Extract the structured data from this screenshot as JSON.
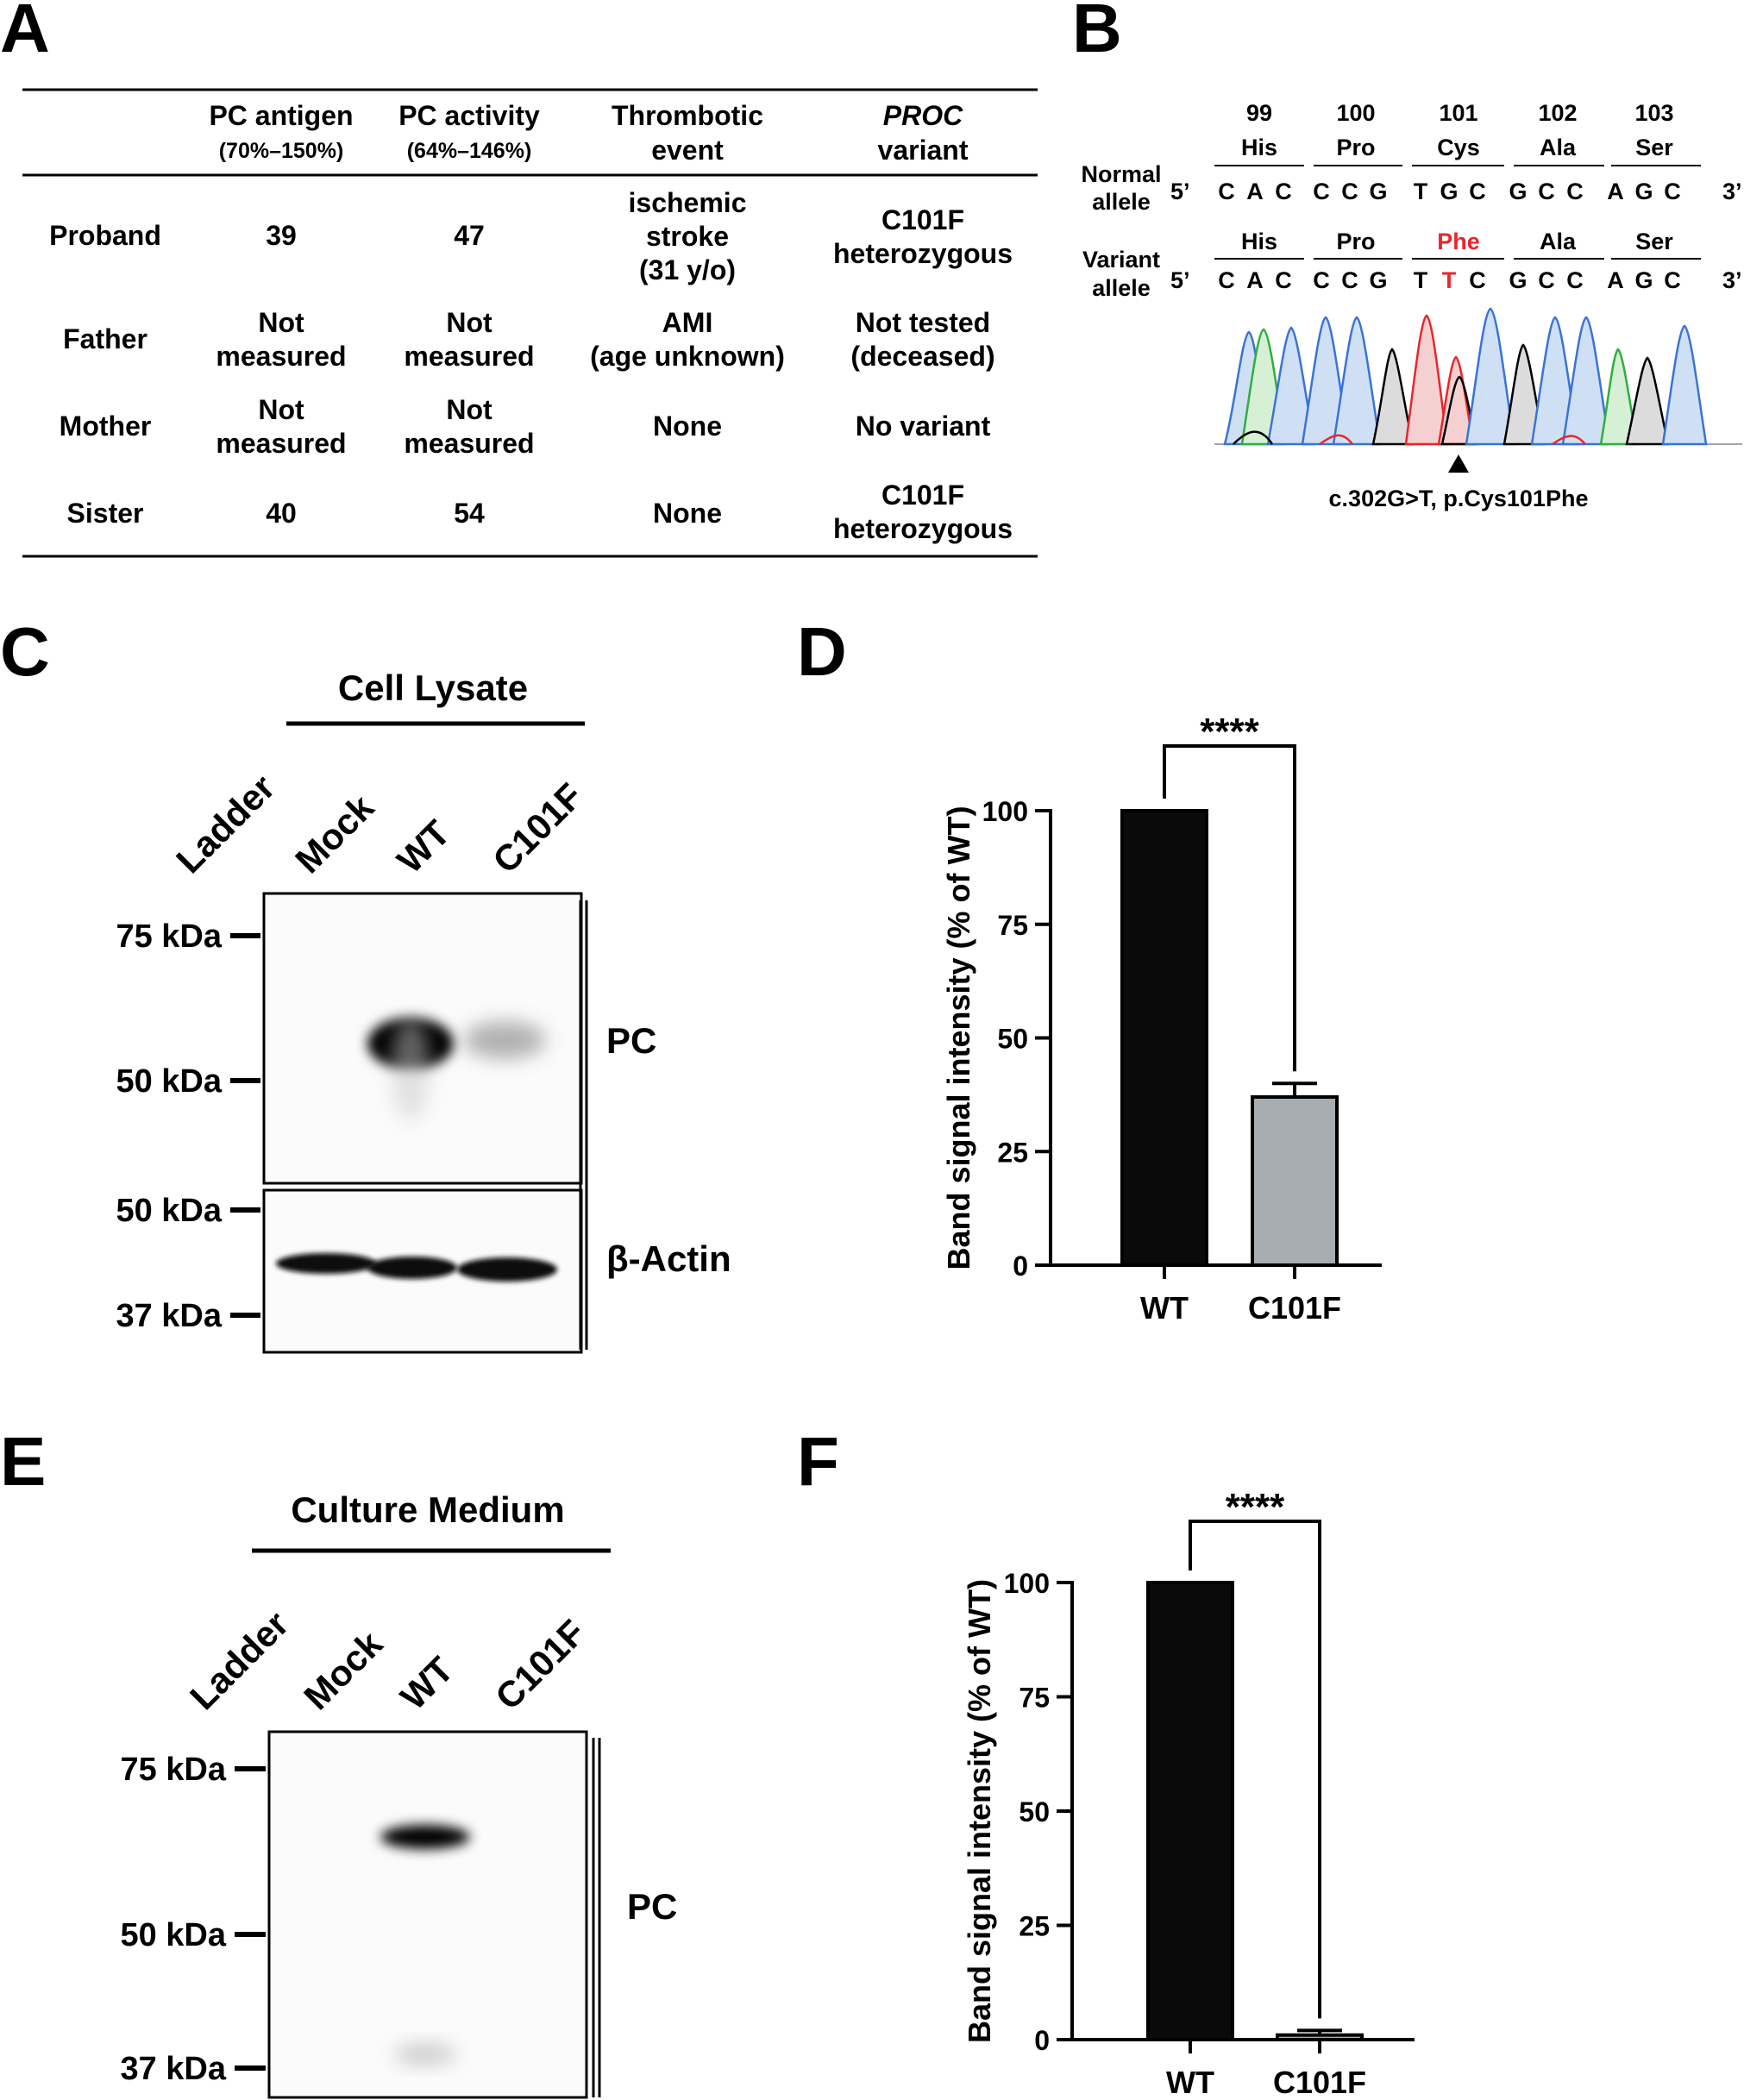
{
  "panels": {
    "A": "A",
    "B": "B",
    "C": "C",
    "D": "D",
    "E": "E",
    "F": "F"
  },
  "table": {
    "headers": [
      {
        "main": "PC antigen",
        "sub": "(70%–150%)"
      },
      {
        "main": "PC activity",
        "sub": "(64%–146%)"
      },
      {
        "main": "Thrombotic",
        "sub": "event"
      },
      {
        "main": "PROC",
        "sub": "variant"
      }
    ],
    "rows": [
      {
        "label": "Proband",
        "cells": [
          [
            "39"
          ],
          [
            "47"
          ],
          [
            "ischemic",
            "stroke",
            "(31 y/o)"
          ],
          [
            "C101F",
            "heterozygous"
          ]
        ]
      },
      {
        "label": "Father",
        "cells": [
          [
            "Not",
            "measured"
          ],
          [
            "Not",
            "measured"
          ],
          [
            "AMI",
            "(age unknown)"
          ],
          [
            "Not tested",
            "(deceased)"
          ]
        ]
      },
      {
        "label": "Mother",
        "cells": [
          [
            "Not",
            "measured"
          ],
          [
            "Not",
            "measured"
          ],
          [
            "None"
          ],
          [
            "No variant"
          ]
        ]
      },
      {
        "label": "Sister",
        "cells": [
          [
            "40"
          ],
          [
            "54"
          ],
          [
            "None"
          ],
          [
            "C101F",
            "heterozygous"
          ]
        ]
      }
    ]
  },
  "sequence": {
    "codon_numbers": [
      "99",
      "100",
      "101",
      "102",
      "103"
    ],
    "normal_aa": [
      "His",
      "Pro",
      "Cys",
      "Ala",
      "Ser"
    ],
    "variant_aa": [
      "His",
      "Pro",
      "Phe",
      "Ala",
      "Ser"
    ],
    "normal_label": [
      "Normal",
      "allele"
    ],
    "variant_label": [
      "Variant",
      "allele"
    ],
    "five_prime": "5’",
    "three_prime": "3’",
    "normal_bases": [
      "C",
      "A",
      "C",
      "C",
      "C",
      "G",
      "T",
      "G",
      "C",
      "G",
      "C",
      "C",
      "A",
      "G",
      "C"
    ],
    "variant_bases": [
      "C",
      "A",
      "C",
      "C",
      "C",
      "G",
      "T",
      "T",
      "C",
      "G",
      "C",
      "C",
      "A",
      "G",
      "C"
    ],
    "mutation": "c.302G>T, p.Cys101Phe",
    "highlight_color": "#e8262b"
  },
  "blot_c": {
    "title": "Cell Lysate",
    "lanes": [
      "Ladder",
      "Mock",
      "WT",
      "C101F"
    ],
    "markers_top": [
      "75 kDa",
      "50 kDa"
    ],
    "markers_bottom": [
      "50 kDa",
      "37 kDa"
    ],
    "label_top": "PC",
    "label_bottom": "β-Actin"
  },
  "blot_e": {
    "title": "Culture Medium",
    "lanes": [
      "Ladder",
      "Mock",
      "WT",
      "C101F"
    ],
    "markers": [
      "75 kDa",
      "50 kDa",
      "37 kDa"
    ],
    "label": "PC"
  },
  "chart_data": [
    {
      "type": "bar",
      "categories": [
        "WT",
        "C101F"
      ],
      "values": [
        100,
        37
      ],
      "errors": [
        0,
        3
      ],
      "colors": [
        "#0a0a0a",
        "#a7adb0"
      ],
      "ylabel": "Band signal intensity (% of WT)",
      "ylim": [
        0,
        100
      ],
      "yticks": [
        "0",
        "25",
        "50",
        "75",
        "100"
      ],
      "significance": "****"
    },
    {
      "type": "bar",
      "categories": [
        "WT",
        "C101F"
      ],
      "values": [
        100,
        1
      ],
      "errors": [
        0,
        1
      ],
      "colors": [
        "#0a0a0a",
        "#a7adb0"
      ],
      "ylabel": "Band signal intensity (% of WT)",
      "ylim": [
        0,
        100
      ],
      "yticks": [
        "0",
        "25",
        "50",
        "75",
        "100"
      ],
      "significance": "****"
    }
  ]
}
